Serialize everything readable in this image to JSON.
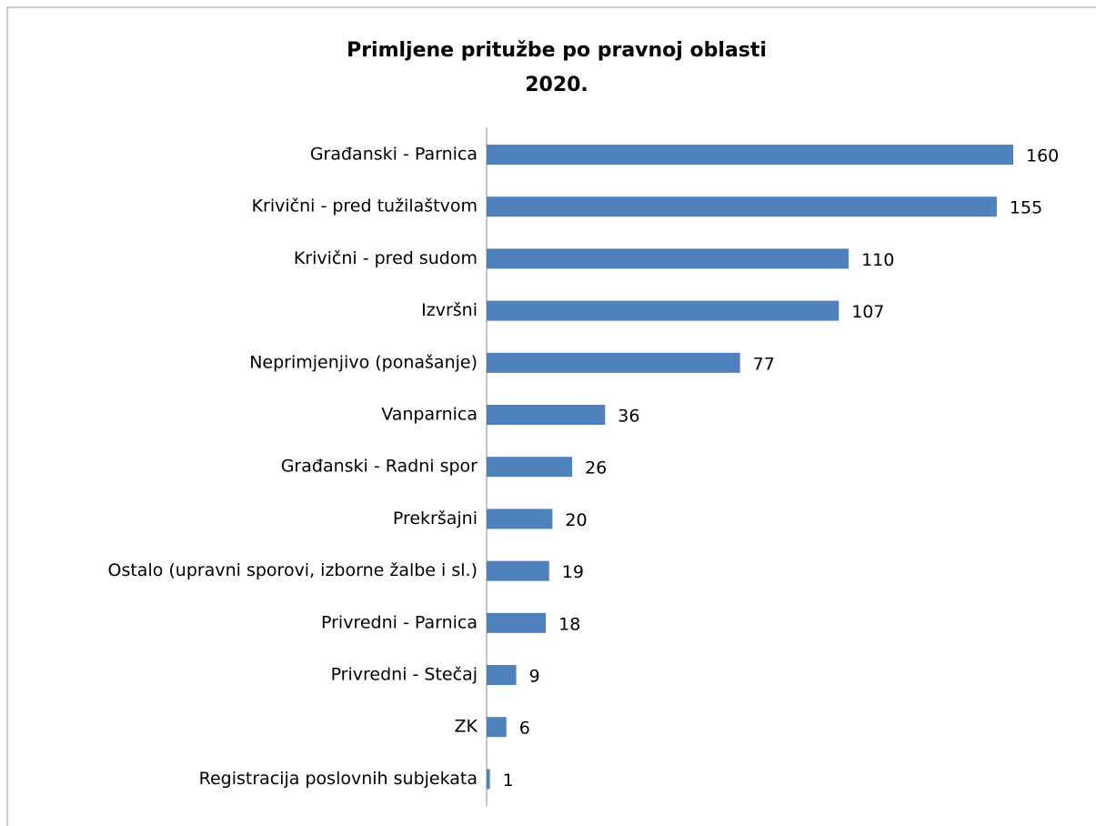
{
  "chart_data": {
    "type": "bar",
    "orientation": "horizontal",
    "title": [
      "Primljene pritužbe po pravnoj oblasti",
      "2020."
    ],
    "categories": [
      "Građanski - Parnica",
      "Krivični - pred tužilaštvom",
      "Krivični - pred sudom",
      "Izvršni",
      "Neprimjenjivo (ponašanje)",
      "Vanparnica",
      "Građanski - Radni spor",
      "Prekršajni",
      "Ostalo (upravni sporovi, izborne žalbe i sl.)",
      "Privredni - Parnica",
      "Privredni - Stečaj",
      "ZK",
      "Registracija poslovnih subjekata"
    ],
    "values": [
      160,
      155,
      110,
      107,
      77,
      36,
      26,
      20,
      19,
      18,
      9,
      6,
      1
    ],
    "color": "#4f81bd"
  }
}
